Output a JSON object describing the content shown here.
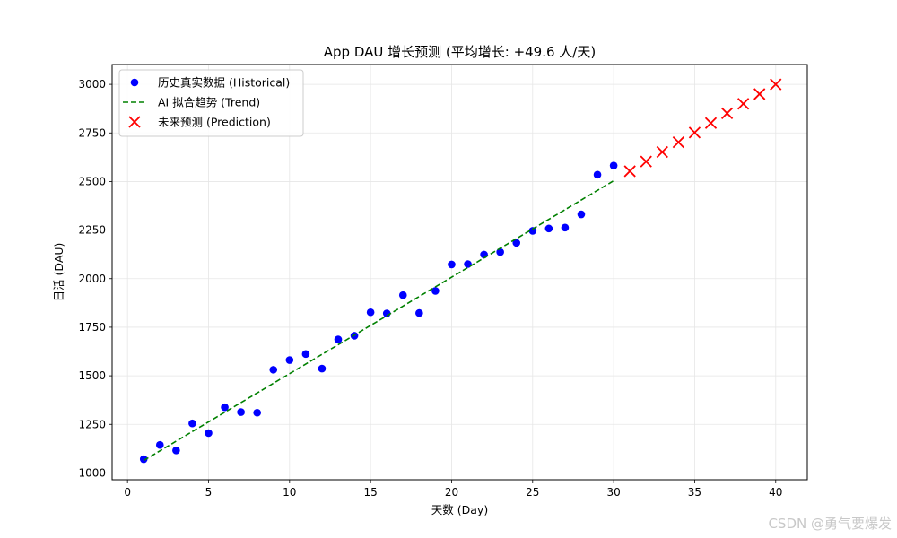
{
  "chart_data": {
    "type": "scatter",
    "title": "App DAU 增长预测 (平均增长: +49.6 人/天)",
    "xlabel": "天数 (Day)",
    "ylabel": "日活 (DAU)",
    "xlim": [
      -0.95,
      41.95
    ],
    "ylim": [
      965,
      3102
    ],
    "xticks": [
      0,
      5,
      10,
      15,
      20,
      25,
      30,
      35,
      40
    ],
    "yticks": [
      1000,
      1250,
      1500,
      1750,
      2000,
      2250,
      2500,
      2750,
      3000
    ],
    "grid": true,
    "legend_position": "top-left",
    "series": [
      {
        "name": "历史真实数据 (Historical)",
        "kind": "scatter",
        "marker": "circle",
        "color": "#0000ff",
        "x": [
          1,
          2,
          3,
          4,
          5,
          6,
          7,
          8,
          9,
          10,
          11,
          12,
          13,
          14,
          15,
          16,
          17,
          18,
          19,
          20,
          21,
          22,
          23,
          24,
          25,
          26,
          27,
          28,
          29,
          30
        ],
        "y": [
          1071,
          1144,
          1116,
          1255,
          1205,
          1338,
          1313,
          1310,
          1531,
          1581,
          1612,
          1537,
          1687,
          1706,
          1827,
          1821,
          1915,
          1823,
          1937,
          2073,
          2075,
          2124,
          2137,
          2184,
          2246,
          2258,
          2263,
          2331,
          2535,
          2582
        ]
      },
      {
        "name": "AI 拟合趋势 (Trend)",
        "kind": "line",
        "style": "dashed",
        "color": "#008000",
        "x": [
          1,
          30
        ],
        "y": [
          1064,
          2504
        ]
      },
      {
        "name": "未来预测 (Prediction)",
        "kind": "scatter",
        "marker": "x",
        "color": "#ff0000",
        "x": [
          31,
          32,
          33,
          34,
          35,
          36,
          37,
          38,
          39,
          40
        ],
        "y": [
          2553,
          2603,
          2652,
          2702,
          2752,
          2801,
          2851,
          2900,
          2950,
          3000
        ]
      }
    ]
  },
  "watermark": "CSDN @勇气要爆发"
}
